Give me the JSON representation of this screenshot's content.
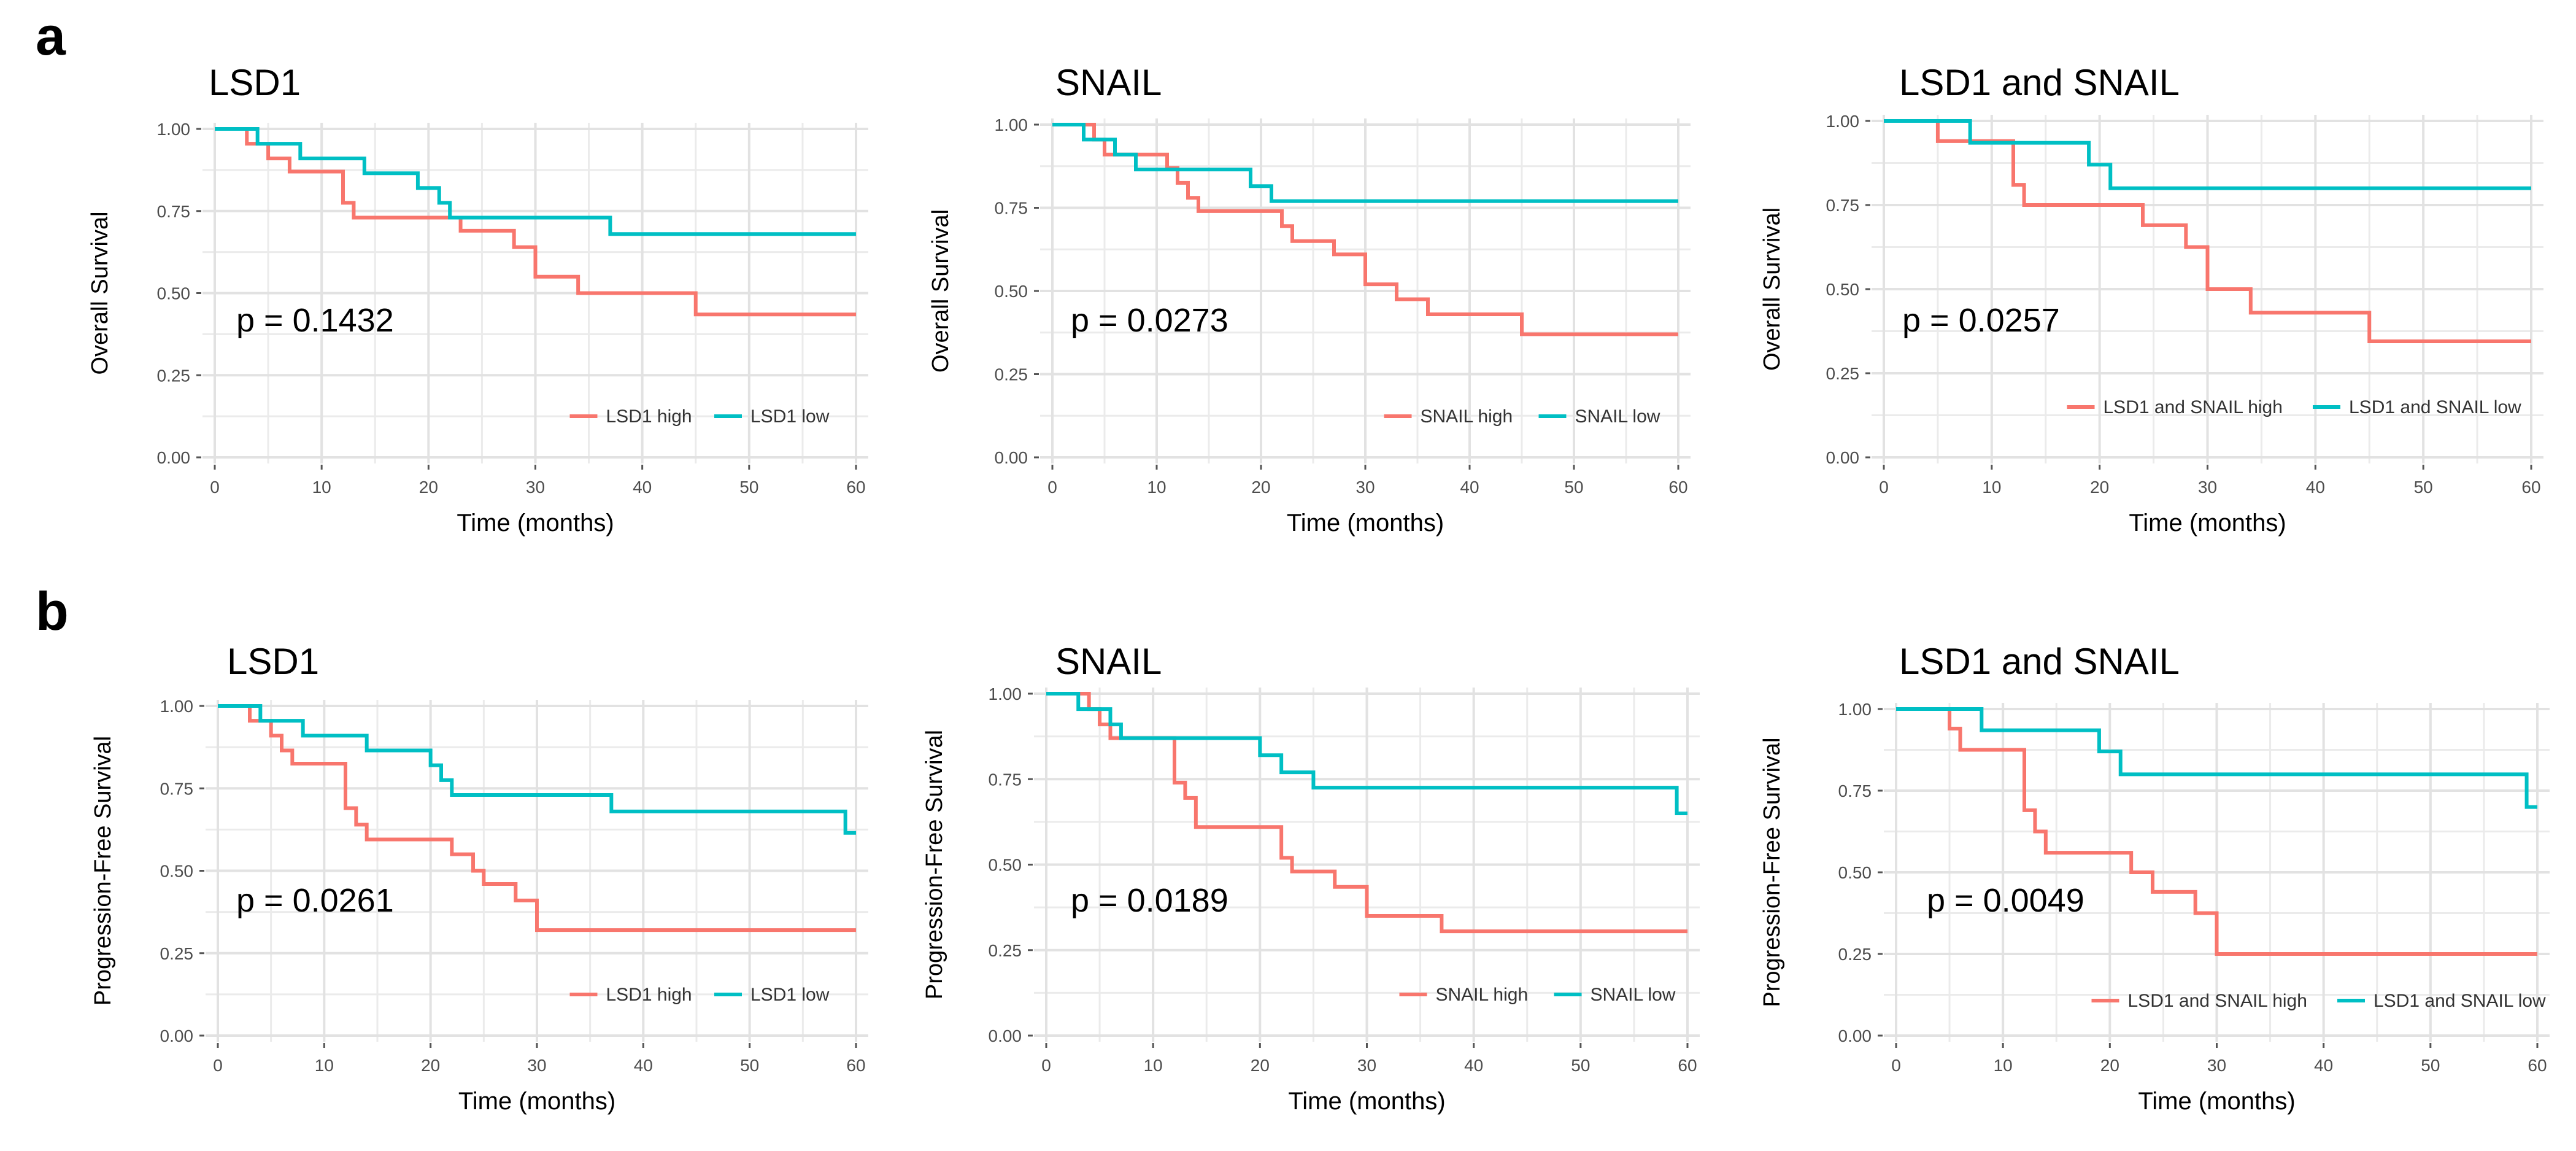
{
  "panels": [
    {
      "letter": "a"
    },
    {
      "letter": "b"
    }
  ],
  "colors": {
    "high": "#f8766d",
    "low": "#00bfc4",
    "grid": "#ebebeb",
    "axis_text": "#4d4d4d"
  },
  "chart_data": [
    {
      "type": "line",
      "subtype": "kaplan-meier step",
      "panel": "a",
      "title": "LSD1",
      "xlabel": "Time (months)",
      "ylabel": "Overall Survival",
      "xlim": [
        0,
        60
      ],
      "ylim": [
        0,
        1
      ],
      "x_ticks": [
        "0",
        "10",
        "20",
        "30",
        "40",
        "50",
        "60"
      ],
      "y_ticks": [
        "0.00",
        "0.25",
        "0.50",
        "0.75",
        "1.00"
      ],
      "annotation": "p = 0.1432",
      "series": [
        {
          "name": "LSD1 high",
          "color": "#f8766d",
          "steps": [
            [
              0,
              1
            ],
            [
              3,
              0.955
            ],
            [
              5,
              0.91
            ],
            [
              7,
              0.87
            ],
            [
              12,
              0.775
            ],
            [
              13,
              0.73
            ],
            [
              23,
              0.69
            ],
            [
              28,
              0.64
            ],
            [
              30,
              0.55
            ],
            [
              34,
              0.5
            ],
            [
              45,
              0.435
            ],
            [
              60,
              0.435
            ]
          ]
        },
        {
          "name": "LSD1 low",
          "color": "#00bfc4",
          "steps": [
            [
              0,
              1
            ],
            [
              4,
              0.955
            ],
            [
              8,
              0.91
            ],
            [
              14,
              0.865
            ],
            [
              19,
              0.82
            ],
            [
              21,
              0.775
            ],
            [
              22,
              0.73
            ],
            [
              37,
              0.68
            ],
            [
              60,
              0.68
            ]
          ]
        }
      ]
    },
    {
      "type": "line",
      "subtype": "kaplan-meier step",
      "panel": "a",
      "title": "SNAIL",
      "xlabel": "Time (months)",
      "ylabel": "Overall Survival",
      "xlim": [
        0,
        60
      ],
      "ylim": [
        0,
        1
      ],
      "x_ticks": [
        "0",
        "10",
        "20",
        "30",
        "40",
        "50",
        "60"
      ],
      "y_ticks": [
        "0.00",
        "0.25",
        "0.50",
        "0.75",
        "1.00"
      ],
      "annotation": "p = 0.0273",
      "series": [
        {
          "name": "SNAIL high",
          "color": "#f8766d",
          "steps": [
            [
              0,
              1
            ],
            [
              4,
              0.955
            ],
            [
              5,
              0.91
            ],
            [
              11,
              0.87
            ],
            [
              12,
              0.825
            ],
            [
              13,
              0.78
            ],
            [
              14,
              0.74
            ],
            [
              22,
              0.695
            ],
            [
              23,
              0.65
            ],
            [
              27,
              0.61
            ],
            [
              30,
              0.52
            ],
            [
              33,
              0.475
            ],
            [
              36,
              0.43
            ],
            [
              45,
              0.37
            ],
            [
              60,
              0.37
            ]
          ]
        },
        {
          "name": "SNAIL low",
          "color": "#00bfc4",
          "steps": [
            [
              0,
              1
            ],
            [
              3,
              0.955
            ],
            [
              6,
              0.91
            ],
            [
              8,
              0.865
            ],
            [
              19,
              0.815
            ],
            [
              21,
              0.77
            ],
            [
              60,
              0.77
            ]
          ]
        }
      ]
    },
    {
      "type": "line",
      "subtype": "kaplan-meier step",
      "panel": "a",
      "title": "LSD1 and SNAIL",
      "xlabel": "Time (months)",
      "ylabel": "Overall Survival",
      "xlim": [
        0,
        60
      ],
      "ylim": [
        0,
        1
      ],
      "x_ticks": [
        "0",
        "10",
        "20",
        "30",
        "40",
        "50",
        "60"
      ],
      "y_ticks": [
        "0.00",
        "0.25",
        "0.50",
        "0.75",
        "1.00"
      ],
      "annotation": "p = 0.0257",
      "series": [
        {
          "name": "LSD1 and SNAIL high",
          "color": "#f8766d",
          "steps": [
            [
              0,
              1
            ],
            [
              5,
              0.94
            ],
            [
              12,
              0.81
            ],
            [
              13,
              0.75
            ],
            [
              24,
              0.69
            ],
            [
              28,
              0.625
            ],
            [
              30,
              0.5
            ],
            [
              34,
              0.43
            ],
            [
              45,
              0.345
            ],
            [
              60,
              0.345
            ]
          ]
        },
        {
          "name": "LSD1 and SNAIL low",
          "color": "#00bfc4",
          "steps": [
            [
              0,
              1
            ],
            [
              8,
              0.935
            ],
            [
              19,
              0.87
            ],
            [
              21,
              0.8
            ],
            [
              60,
              0.8
            ]
          ]
        }
      ]
    },
    {
      "type": "line",
      "subtype": "kaplan-meier step",
      "panel": "b",
      "title": "LSD1",
      "xlabel": "Time (months)",
      "ylabel": "Progression-Free Survival",
      "xlim": [
        0,
        60
      ],
      "ylim": [
        0,
        1
      ],
      "x_ticks": [
        "0",
        "10",
        "20",
        "30",
        "40",
        "50",
        "60"
      ],
      "y_ticks": [
        "0.00",
        "0.25",
        "0.50",
        "0.75",
        "1.00"
      ],
      "annotation": "p = 0.0261",
      "series": [
        {
          "name": "LSD1 high",
          "color": "#f8766d",
          "steps": [
            [
              0,
              1
            ],
            [
              3,
              0.955
            ],
            [
              5,
              0.91
            ],
            [
              6,
              0.865
            ],
            [
              7,
              0.825
            ],
            [
              12,
              0.69
            ],
            [
              13,
              0.64
            ],
            [
              14,
              0.595
            ],
            [
              22,
              0.55
            ],
            [
              24,
              0.5
            ],
            [
              25,
              0.46
            ],
            [
              28,
              0.41
            ],
            [
              30,
              0.32
            ],
            [
              60,
              0.32
            ]
          ]
        },
        {
          "name": "LSD1 low",
          "color": "#00bfc4",
          "steps": [
            [
              0,
              1
            ],
            [
              4,
              0.955
            ],
            [
              8,
              0.91
            ],
            [
              14,
              0.865
            ],
            [
              20,
              0.82
            ],
            [
              21,
              0.775
            ],
            [
              22,
              0.73
            ],
            [
              37,
              0.68
            ],
            [
              59,
              0.615
            ],
            [
              60,
              0.615
            ]
          ]
        }
      ]
    },
    {
      "type": "line",
      "subtype": "kaplan-meier step",
      "panel": "b",
      "title": "SNAIL",
      "xlabel": "Time (months)",
      "ylabel": "Progression-Free Survival",
      "xlim": [
        0,
        60
      ],
      "ylim": [
        0,
        1
      ],
      "x_ticks": [
        "0",
        "10",
        "20",
        "30",
        "40",
        "50",
        "60"
      ],
      "y_ticks": [
        "0.00",
        "0.25",
        "0.50",
        "0.75",
        "1.00"
      ],
      "annotation": "p = 0.0189",
      "series": [
        {
          "name": "SNAIL high",
          "color": "#f8766d",
          "steps": [
            [
              0,
              1
            ],
            [
              4,
              0.955
            ],
            [
              5,
              0.91
            ],
            [
              6,
              0.87
            ],
            [
              12,
              0.74
            ],
            [
              13,
              0.695
            ],
            [
              14,
              0.61
            ],
            [
              22,
              0.52
            ],
            [
              23,
              0.48
            ],
            [
              27,
              0.435
            ],
            [
              30,
              0.35
            ],
            [
              37,
              0.305
            ],
            [
              60,
              0.305
            ]
          ]
        },
        {
          "name": "SNAIL low",
          "color": "#00bfc4",
          "steps": [
            [
              0,
              1
            ],
            [
              3,
              0.955
            ],
            [
              6,
              0.91
            ],
            [
              7,
              0.87
            ],
            [
              20,
              0.82
            ],
            [
              22,
              0.77
            ],
            [
              25,
              0.725
            ],
            [
              59,
              0.65
            ],
            [
              60,
              0.65
            ]
          ]
        }
      ]
    },
    {
      "type": "line",
      "subtype": "kaplan-meier step",
      "panel": "b",
      "title": "LSD1 and SNAIL",
      "xlabel": "Time (months)",
      "ylabel": "Progression-Free Survival",
      "xlim": [
        0,
        60
      ],
      "ylim": [
        0,
        1
      ],
      "x_ticks": [
        "0",
        "10",
        "20",
        "30",
        "40",
        "50",
        "60"
      ],
      "y_ticks": [
        "0.00",
        "0.25",
        "0.50",
        "0.75",
        "1.00"
      ],
      "annotation": "p = 0.0049",
      "series": [
        {
          "name": "LSD1 and SNAIL high",
          "color": "#f8766d",
          "steps": [
            [
              0,
              1
            ],
            [
              5,
              0.94
            ],
            [
              6,
              0.875
            ],
            [
              12,
              0.69
            ],
            [
              13,
              0.625
            ],
            [
              14,
              0.56
            ],
            [
              22,
              0.5
            ],
            [
              24,
              0.44
            ],
            [
              28,
              0.375
            ],
            [
              30,
              0.25
            ],
            [
              60,
              0.25
            ]
          ]
        },
        {
          "name": "LSD1 and SNAIL low",
          "color": "#00bfc4",
          "steps": [
            [
              0,
              1
            ],
            [
              8,
              0.935
            ],
            [
              19,
              0.87
            ],
            [
              21,
              0.8
            ],
            [
              59,
              0.7
            ],
            [
              60,
              0.7
            ]
          ]
        }
      ]
    }
  ]
}
